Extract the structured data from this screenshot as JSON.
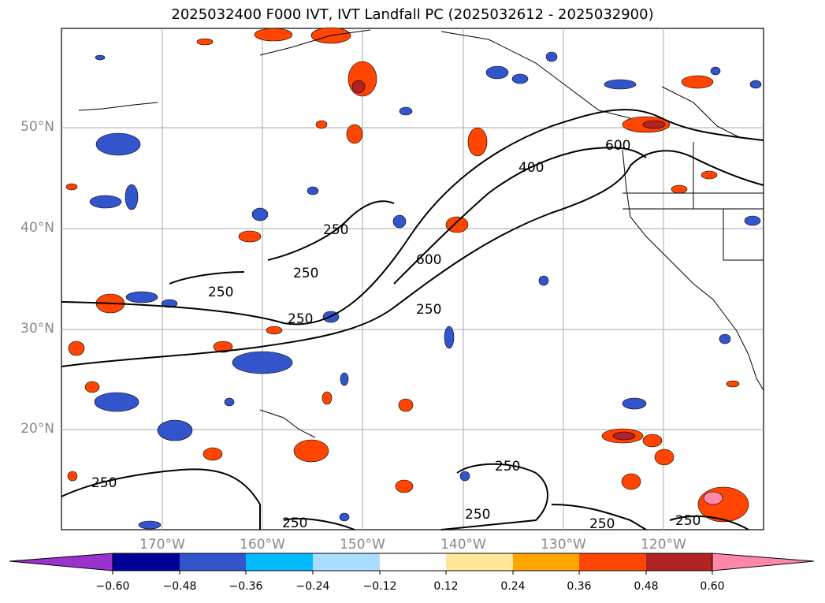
{
  "title": "2025032400 F000 IVT, IVT Landfall PC (2025032612 - 2025032900)",
  "lat_labels": [
    "50°N",
    "40°N",
    "30°N",
    "20°N"
  ],
  "lon_labels": [
    "170°W",
    "160°W",
    "150°W",
    "140°W",
    "130°W",
    "120°W"
  ],
  "contour_labels": [
    "250",
    "250",
    "250",
    "250",
    "250",
    "250",
    "250",
    "250",
    "250",
    "250",
    "400",
    "600",
    "600",
    "250"
  ],
  "colorbar": {
    "ticks": [
      "−0.60",
      "−0.48",
      "−0.36",
      "−0.24",
      "−0.12",
      "0.12",
      "0.24",
      "0.36",
      "0.48",
      "0.60"
    ],
    "colors": [
      "#9933cc",
      "#000099",
      "#3355cc",
      "#00bbff",
      "#aaddff",
      "#ffffff",
      "#ffe699",
      "#ffa500",
      "#ff4500",
      "#b22222",
      "#ff88aa",
      "#ff88aa"
    ]
  }
}
